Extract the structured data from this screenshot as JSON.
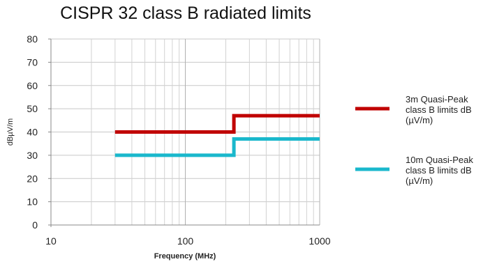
{
  "chart_data": {
    "type": "line",
    "title": "CISPR 32 class B radiated limits",
    "xlabel": "Frequency (MHz)",
    "ylabel": "dBµV/m",
    "xscale": "log",
    "xlim": [
      10,
      1000
    ],
    "ylim": [
      0,
      80
    ],
    "x_ticks": [
      "10",
      "100",
      "1000"
    ],
    "y_ticks": [
      "0",
      "10",
      "20",
      "30",
      "40",
      "50",
      "60",
      "70",
      "80"
    ],
    "grid": true,
    "legend_position": "right",
    "series": [
      {
        "name_lines": [
          "3m Quasi-Peak",
          "class B limits dB",
          "(µV/m)"
        ],
        "color": "#c00000",
        "points": [
          [
            30,
            40
          ],
          [
            230,
            40
          ],
          [
            230,
            47
          ],
          [
            1000,
            47
          ]
        ]
      },
      {
        "name_lines": [
          "10m Quasi-Peak",
          "class B limits dB",
          "(µV/m)"
        ],
        "color": "#1ab8cc",
        "points": [
          [
            30,
            30
          ],
          [
            230,
            30
          ],
          [
            230,
            37
          ],
          [
            1000,
            37
          ]
        ]
      }
    ]
  }
}
